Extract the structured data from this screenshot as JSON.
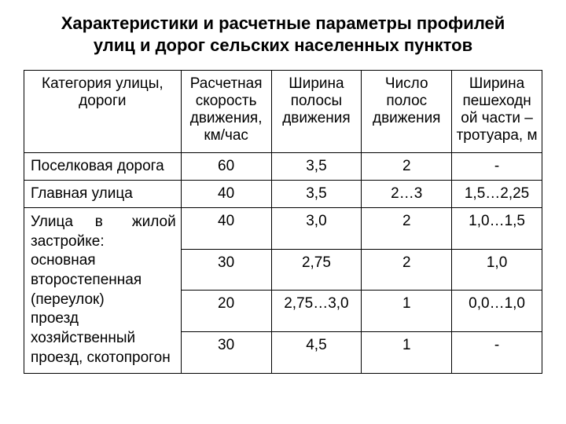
{
  "title_line1": "Характеристики и расчетные параметры профилей",
  "title_line2": "улиц и дорог сельских населенных пунктов",
  "headers": {
    "c1": "Категория улицы, дороги",
    "c2": "Расчетная скорость движения, км/час",
    "c3": "Ширина полосы движения",
    "c4": "Число полос движения",
    "c5": "Ширина пешеходн ой части – тротуара, м"
  },
  "rows": {
    "r1": {
      "cat": "Поселковая дорога",
      "v1": "60",
      "v2": "3,5",
      "v3": "2",
      "v4": "-"
    },
    "r2": {
      "cat": "Главная улица",
      "v1": "40",
      "v2": "3,5",
      "v3": "2…3",
      "v4": "1,5…2,25"
    },
    "r3": {
      "cat_html": "Улица в жилой застройке:\nосновная\nвторостепенная (переулок)\nпроезд\nхозяйственный проезд, скотопрогон",
      "l1": {
        "v1": "40",
        "v2": "3,0",
        "v3": "2",
        "v4": "1,0…1,5"
      },
      "l2": {
        "v1": "30",
        "v2": "2,75",
        "v3": "2",
        "v4": "1,0"
      },
      "l3": {
        "v1": "20",
        "v2": "2,75…3,0",
        "v3": "1",
        "v4": "0,0…1,0"
      },
      "l4": {
        "v1": "30",
        "v2": "4,5",
        "v3": "1",
        "v4": "-"
      }
    }
  }
}
